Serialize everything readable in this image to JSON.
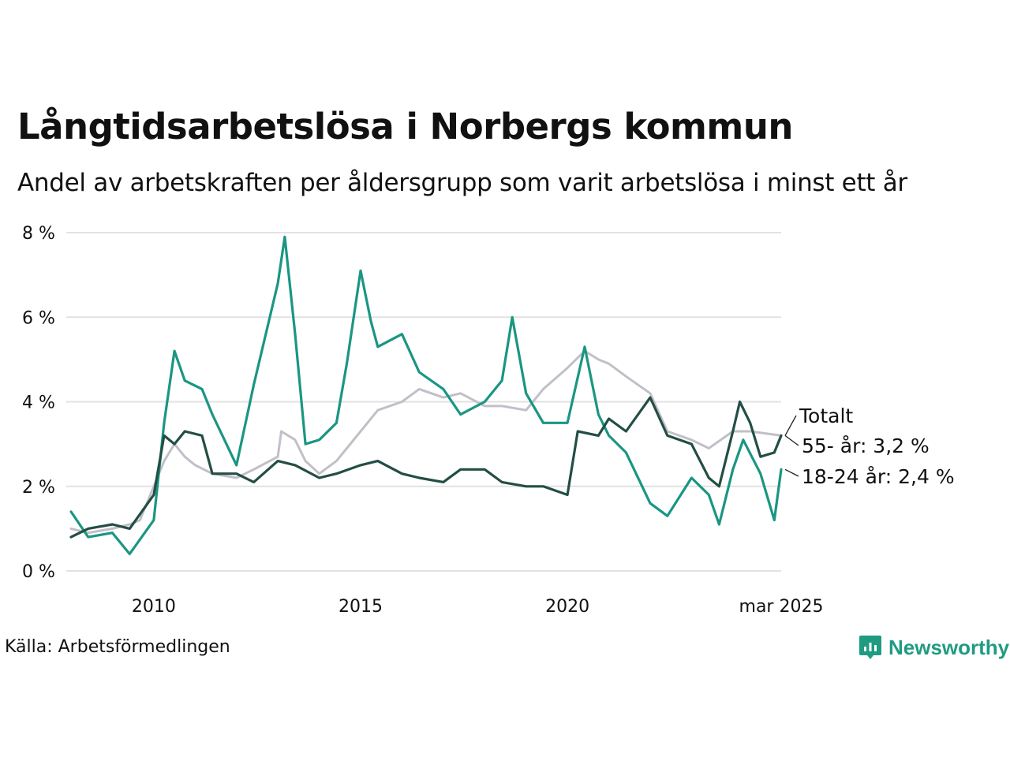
{
  "title": "Långtidsarbetslösa i Norbergs kommun",
  "subtitle": "Andel av arbetskraften per åldersgrupp som varit arbetslösa i minst ett år",
  "source": "Källa: Arbetsförmedlingen",
  "brand": {
    "name": "Newsworthy",
    "icon": "newsworthy-logo-icon"
  },
  "colors": {
    "totalt": "#c2bfc8",
    "age55": "#234e45",
    "age18_24": "#1a9683",
    "grid": "#e2e2e2",
    "text": "#111111"
  },
  "chart_data": {
    "type": "line",
    "title": "Långtidsarbetslösa i Norbergs kommun",
    "subtitle": "Andel av arbetskraften per åldersgrupp som varit arbetslösa i minst ett år",
    "xlabel": "",
    "ylabel": "",
    "x_range": [
      "2008-01",
      "2025-03"
    ],
    "x_ticks": [
      {
        "x": "2010-01",
        "label": "2010"
      },
      {
        "x": "2015-01",
        "label": "2015"
      },
      {
        "x": "2020-01",
        "label": "2020"
      },
      {
        "x": "2025-03",
        "label": "mar 2025"
      }
    ],
    "ylim": [
      0,
      8
    ],
    "y_ticks": [
      0,
      2,
      4,
      6,
      8
    ],
    "y_tick_labels": [
      "0 %",
      "2 %",
      "4 %",
      "6 %",
      "8 %"
    ],
    "grid": true,
    "series": [
      {
        "key": "totalt",
        "name": "Totalt",
        "label": "Totalt",
        "points": [
          [
            "2008-01",
            1.0
          ],
          [
            "2008-06",
            0.9
          ],
          [
            "2009-01",
            1.0
          ],
          [
            "2009-06",
            1.1
          ],
          [
            "2009-09",
            1.2
          ],
          [
            "2010-01",
            2.0
          ],
          [
            "2010-04",
            2.6
          ],
          [
            "2010-07",
            3.0
          ],
          [
            "2010-10",
            2.7
          ],
          [
            "2011-01",
            2.5
          ],
          [
            "2011-06",
            2.3
          ],
          [
            "2012-01",
            2.2
          ],
          [
            "2012-06",
            2.4
          ],
          [
            "2013-01",
            2.7
          ],
          [
            "2013-02",
            3.3
          ],
          [
            "2013-06",
            3.1
          ],
          [
            "2013-09",
            2.6
          ],
          [
            "2014-01",
            2.3
          ],
          [
            "2014-06",
            2.6
          ],
          [
            "2014-09",
            2.9
          ],
          [
            "2015-01",
            3.3
          ],
          [
            "2015-06",
            3.8
          ],
          [
            "2016-01",
            4.0
          ],
          [
            "2016-06",
            4.3
          ],
          [
            "2017-01",
            4.1
          ],
          [
            "2017-06",
            4.2
          ],
          [
            "2018-01",
            3.9
          ],
          [
            "2018-06",
            3.9
          ],
          [
            "2019-01",
            3.8
          ],
          [
            "2019-06",
            4.3
          ],
          [
            "2020-01",
            4.8
          ],
          [
            "2020-06",
            5.2
          ],
          [
            "2020-10",
            5.0
          ],
          [
            "2021-01",
            4.9
          ],
          [
            "2021-06",
            4.6
          ],
          [
            "2022-01",
            4.2
          ],
          [
            "2022-06",
            3.3
          ],
          [
            "2023-01",
            3.1
          ],
          [
            "2023-06",
            2.9
          ],
          [
            "2024-01",
            3.3
          ],
          [
            "2024-06",
            3.3
          ],
          [
            "2025-03",
            3.2
          ]
        ]
      },
      {
        "key": "age55",
        "name": "55- år",
        "label": "55- år: 3,2 %",
        "points": [
          [
            "2008-01",
            0.8
          ],
          [
            "2008-06",
            1.0
          ],
          [
            "2009-01",
            1.1
          ],
          [
            "2009-06",
            1.0
          ],
          [
            "2010-01",
            1.8
          ],
          [
            "2010-04",
            3.2
          ],
          [
            "2010-07",
            3.0
          ],
          [
            "2010-10",
            3.3
          ],
          [
            "2011-03",
            3.2
          ],
          [
            "2011-06",
            2.3
          ],
          [
            "2012-01",
            2.3
          ],
          [
            "2012-06",
            2.1
          ],
          [
            "2013-01",
            2.6
          ],
          [
            "2013-06",
            2.5
          ],
          [
            "2014-01",
            2.2
          ],
          [
            "2014-06",
            2.3
          ],
          [
            "2015-01",
            2.5
          ],
          [
            "2015-06",
            2.6
          ],
          [
            "2016-01",
            2.3
          ],
          [
            "2016-06",
            2.2
          ],
          [
            "2017-01",
            2.1
          ],
          [
            "2017-06",
            2.4
          ],
          [
            "2018-01",
            2.4
          ],
          [
            "2018-06",
            2.1
          ],
          [
            "2019-01",
            2.0
          ],
          [
            "2019-06",
            2.0
          ],
          [
            "2020-01",
            1.8
          ],
          [
            "2020-04",
            3.3
          ],
          [
            "2020-10",
            3.2
          ],
          [
            "2021-01",
            3.6
          ],
          [
            "2021-06",
            3.3
          ],
          [
            "2022-01",
            4.1
          ],
          [
            "2022-06",
            3.2
          ],
          [
            "2023-01",
            3.0
          ],
          [
            "2023-06",
            2.2
          ],
          [
            "2023-09",
            2.0
          ],
          [
            "2024-01",
            3.3
          ],
          [
            "2024-03",
            4.0
          ],
          [
            "2024-06",
            3.5
          ],
          [
            "2024-09",
            2.7
          ],
          [
            "2025-01",
            2.8
          ],
          [
            "2025-03",
            3.2
          ]
        ]
      },
      {
        "key": "age18_24",
        "name": "18-24 år",
        "label": "18-24 år: 2,4 %",
        "points": [
          [
            "2008-01",
            1.4
          ],
          [
            "2008-06",
            0.8
          ],
          [
            "2009-01",
            0.9
          ],
          [
            "2009-06",
            0.4
          ],
          [
            "2010-01",
            1.2
          ],
          [
            "2010-04",
            3.5
          ],
          [
            "2010-07",
            5.2
          ],
          [
            "2010-10",
            4.5
          ],
          [
            "2011-03",
            4.3
          ],
          [
            "2011-06",
            3.7
          ],
          [
            "2012-01",
            2.5
          ],
          [
            "2012-06",
            4.4
          ],
          [
            "2013-01",
            6.8
          ],
          [
            "2013-03",
            7.9
          ],
          [
            "2013-06",
            5.6
          ],
          [
            "2013-09",
            3.0
          ],
          [
            "2014-01",
            3.1
          ],
          [
            "2014-06",
            3.5
          ],
          [
            "2014-09",
            4.9
          ],
          [
            "2015-01",
            7.1
          ],
          [
            "2015-04",
            5.9
          ],
          [
            "2015-06",
            5.3
          ],
          [
            "2016-01",
            5.6
          ],
          [
            "2016-06",
            4.7
          ],
          [
            "2017-01",
            4.3
          ],
          [
            "2017-06",
            3.7
          ],
          [
            "2018-01",
            4.0
          ],
          [
            "2018-06",
            4.5
          ],
          [
            "2018-09",
            6.0
          ],
          [
            "2019-01",
            4.2
          ],
          [
            "2019-06",
            3.5
          ],
          [
            "2020-01",
            3.5
          ],
          [
            "2020-06",
            5.3
          ],
          [
            "2020-10",
            3.7
          ],
          [
            "2021-01",
            3.2
          ],
          [
            "2021-06",
            2.8
          ],
          [
            "2022-01",
            1.6
          ],
          [
            "2022-06",
            1.3
          ],
          [
            "2023-01",
            2.2
          ],
          [
            "2023-06",
            1.8
          ],
          [
            "2023-09",
            1.1
          ],
          [
            "2024-01",
            2.4
          ],
          [
            "2024-04",
            3.1
          ],
          [
            "2024-09",
            2.3
          ],
          [
            "2025-01",
            1.2
          ],
          [
            "2025-03",
            2.4
          ]
        ]
      }
    ]
  }
}
